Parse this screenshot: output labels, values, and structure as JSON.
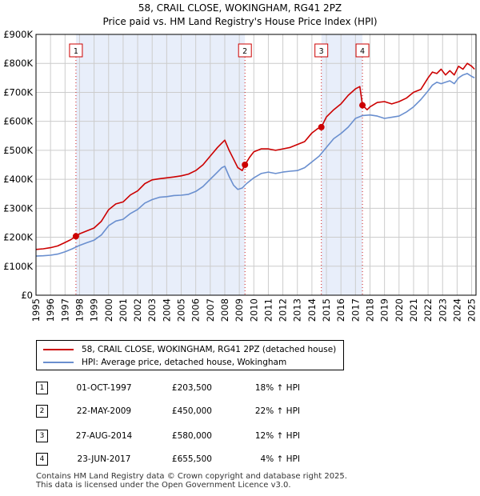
{
  "chart_data": {
    "type": "line",
    "title": "58, CRAIL CLOSE, WOKINGHAM, RG41 2PZ",
    "subtitle": "Price paid vs. HM Land Registry's House Price Index (HPI)",
    "xlabel": "",
    "ylabel": "",
    "xlim": [
      1995,
      2025.3
    ],
    "ylim": [
      0,
      900000
    ],
    "y_ticks": [
      {
        "value": 0,
        "label": "£0"
      },
      {
        "value": 100000,
        "label": "£100K"
      },
      {
        "value": 200000,
        "label": "£200K"
      },
      {
        "value": 300000,
        "label": "£300K"
      },
      {
        "value": 400000,
        "label": "£400K"
      },
      {
        "value": 500000,
        "label": "£500K"
      },
      {
        "value": 600000,
        "label": "£600K"
      },
      {
        "value": 700000,
        "label": "£700K"
      },
      {
        "value": 800000,
        "label": "£800K"
      },
      {
        "value": 900000,
        "label": "£900K"
      }
    ],
    "x_ticks": [
      "1995",
      "1996",
      "1997",
      "1998",
      "1999",
      "2000",
      "2001",
      "2002",
      "2003",
      "2004",
      "2005",
      "2006",
      "2007",
      "2008",
      "2009",
      "2010",
      "2011",
      "2012",
      "2013",
      "2014",
      "2015",
      "2016",
      "2017",
      "2018",
      "2019",
      "2020",
      "2021",
      "2022",
      "2023",
      "2024",
      "2025"
    ],
    "grid": true,
    "ownership_shading": [
      [
        1997.75,
        2009.39
      ],
      [
        2014.65,
        2017.48
      ]
    ],
    "series": [
      {
        "name": "58, CRAIL CLOSE, WOKINGHAM, RG41 2PZ (detached house)",
        "color": "#cc0000",
        "x": [
          1995.0,
          1995.5,
          1996.0,
          1996.5,
          1997.0,
          1997.4,
          1997.75,
          1998.0,
          1998.5,
          1999.0,
          1999.5,
          2000.0,
          2000.5,
          2001.0,
          2001.5,
          2002.0,
          2002.5,
          2003.0,
          2003.5,
          2004.0,
          2004.5,
          2005.0,
          2005.5,
          2006.0,
          2006.5,
          2007.0,
          2007.5,
          2007.8,
          2008.0,
          2008.3,
          2008.6,
          2008.9,
          2009.2,
          2009.39,
          2009.7,
          2010.0,
          2010.5,
          2011.0,
          2011.5,
          2012.0,
          2012.5,
          2013.0,
          2013.5,
          2014.0,
          2014.4,
          2014.65,
          2015.0,
          2015.5,
          2016.0,
          2016.5,
          2017.0,
          2017.3,
          2017.48,
          2017.8,
          2018.0,
          2018.5,
          2019.0,
          2019.5,
          2020.0,
          2020.5,
          2021.0,
          2021.5,
          2022.0,
          2022.3,
          2022.6,
          2022.9,
          2023.2,
          2023.5,
          2023.8,
          2024.1,
          2024.4,
          2024.7,
          2025.0,
          2025.2
        ],
        "values": [
          158000,
          160000,
          164000,
          170000,
          182000,
          192000,
          203500,
          212000,
          222000,
          232000,
          255000,
          295000,
          315000,
          322000,
          346000,
          360000,
          385000,
          398000,
          402000,
          405000,
          408000,
          412000,
          418000,
          430000,
          450000,
          480000,
          510000,
          525000,
          535000,
          500000,
          470000,
          440000,
          430000,
          450000,
          475000,
          495000,
          505000,
          505000,
          500000,
          505000,
          510000,
          520000,
          530000,
          560000,
          575000,
          580000,
          615000,
          640000,
          660000,
          690000,
          712000,
          720000,
          655500,
          640000,
          650000,
          665000,
          668000,
          660000,
          668000,
          680000,
          700000,
          710000,
          750000,
          770000,
          765000,
          780000,
          760000,
          775000,
          760000,
          790000,
          780000,
          800000,
          790000,
          780000
        ]
      },
      {
        "name": "HPI: Average price, detached house, Wokingham",
        "color": "#6a8fcf",
        "x": [
          1995.0,
          1995.5,
          1996.0,
          1996.5,
          1997.0,
          1997.5,
          1998.0,
          1998.5,
          1999.0,
          1999.5,
          2000.0,
          2000.5,
          2001.0,
          2001.5,
          2002.0,
          2002.5,
          2003.0,
          2003.5,
          2004.0,
          2004.5,
          2005.0,
          2005.5,
          2006.0,
          2006.5,
          2007.0,
          2007.5,
          2007.8,
          2008.0,
          2008.3,
          2008.6,
          2008.9,
          2009.2,
          2009.5,
          2010.0,
          2010.5,
          2011.0,
          2011.5,
          2012.0,
          2012.5,
          2013.0,
          2013.5,
          2014.0,
          2014.5,
          2015.0,
          2015.5,
          2016.0,
          2016.5,
          2017.0,
          2017.5,
          2018.0,
          2018.5,
          2019.0,
          2019.5,
          2020.0,
          2020.5,
          2021.0,
          2021.5,
          2022.0,
          2022.3,
          2022.6,
          2022.9,
          2023.2,
          2023.5,
          2023.8,
          2024.1,
          2024.4,
          2024.7,
          2025.0,
          2025.2
        ],
        "values": [
          135000,
          136000,
          138000,
          142000,
          150000,
          160000,
          172000,
          181000,
          190000,
          208000,
          240000,
          256000,
          262000,
          282000,
          296000,
          318000,
          330000,
          338000,
          340000,
          344000,
          345000,
          348000,
          358000,
          375000,
          400000,
          425000,
          440000,
          445000,
          410000,
          380000,
          365000,
          370000,
          385000,
          405000,
          420000,
          425000,
          420000,
          425000,
          428000,
          430000,
          440000,
          460000,
          480000,
          510000,
          540000,
          558000,
          580000,
          610000,
          620000,
          622000,
          618000,
          610000,
          614000,
          618000,
          632000,
          650000,
          675000,
          705000,
          725000,
          735000,
          730000,
          735000,
          740000,
          730000,
          750000,
          760000,
          765000,
          755000,
          750000
        ]
      }
    ],
    "sales": [
      {
        "num": "1",
        "x": 1997.75,
        "price": 203500,
        "date": "01-OCT-1997",
        "price_label": "£203,500",
        "hpi": "18% ↑ HPI"
      },
      {
        "num": "2",
        "x": 2009.39,
        "price": 450000,
        "date": "22-MAY-2009",
        "price_label": "£450,000",
        "hpi": "22% ↑ HPI"
      },
      {
        "num": "3",
        "x": 2014.65,
        "price": 580000,
        "date": "27-AUG-2014",
        "price_label": "£580,000",
        "hpi": "12% ↑ HPI"
      },
      {
        "num": "4",
        "x": 2017.48,
        "price": 655500,
        "date": "23-JUN-2017",
        "price_label": "£655,500",
        "hpi": "4% ↑ HPI"
      }
    ]
  },
  "legend": {
    "property": "58, CRAIL CLOSE, WOKINGHAM, RG41 2PZ (detached house)",
    "hpi": "HPI: Average price, detached house, Wokingham"
  },
  "footer": {
    "line1": "Contains HM Land Registry data © Crown copyright and database right 2025.",
    "line2": "This data is licensed under the Open Government Licence v3.0."
  },
  "colors": {
    "property": "#cc0000",
    "hpi": "#6a8fcf",
    "shade": "#e8eefa",
    "grid": "#cccccc"
  }
}
